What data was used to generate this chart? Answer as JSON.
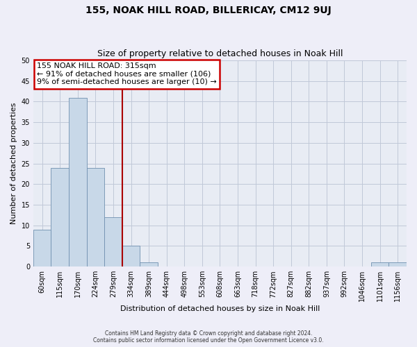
{
  "title": "155, NOAK HILL ROAD, BILLERICAY, CM12 9UJ",
  "subtitle": "Size of property relative to detached houses in Noak Hill",
  "xlabel": "Distribution of detached houses by size in Noak Hill",
  "ylabel": "Number of detached properties",
  "bar_labels": [
    "60sqm",
    "115sqm",
    "170sqm",
    "224sqm",
    "279sqm",
    "334sqm",
    "389sqm",
    "444sqm",
    "498sqm",
    "553sqm",
    "608sqm",
    "663sqm",
    "718sqm",
    "772sqm",
    "827sqm",
    "882sqm",
    "937sqm",
    "992sqm",
    "1046sqm",
    "1101sqm",
    "1156sqm"
  ],
  "bar_values": [
    9,
    24,
    41,
    24,
    12,
    5,
    1,
    0,
    0,
    0,
    0,
    0,
    0,
    0,
    0,
    0,
    0,
    0,
    0,
    1,
    1
  ],
  "bar_color": "#c8d8e8",
  "bar_edge_color": "#7090b0",
  "vline_x_idx": 4.5,
  "vline_color": "#aa0000",
  "ylim": [
    0,
    50
  ],
  "yticks": [
    0,
    5,
    10,
    15,
    20,
    25,
    30,
    35,
    40,
    45,
    50
  ],
  "annotation_title": "155 NOAK HILL ROAD: 315sqm",
  "annotation_line1": "← 91% of detached houses are smaller (106)",
  "annotation_line2": "9% of semi-detached houses are larger (10) →",
  "footer1": "Contains HM Land Registry data © Crown copyright and database right 2024.",
  "footer2": "Contains public sector information licensed under the Open Government Licence v3.0.",
  "bg_color": "#eeeef8",
  "plot_bg_color": "#e8ecf4",
  "grid_color": "#c0c8d8",
  "title_fontsize": 10,
  "subtitle_fontsize": 9,
  "ylabel_fontsize": 8,
  "xlabel_fontsize": 8,
  "tick_fontsize": 7,
  "annot_fontsize": 8
}
